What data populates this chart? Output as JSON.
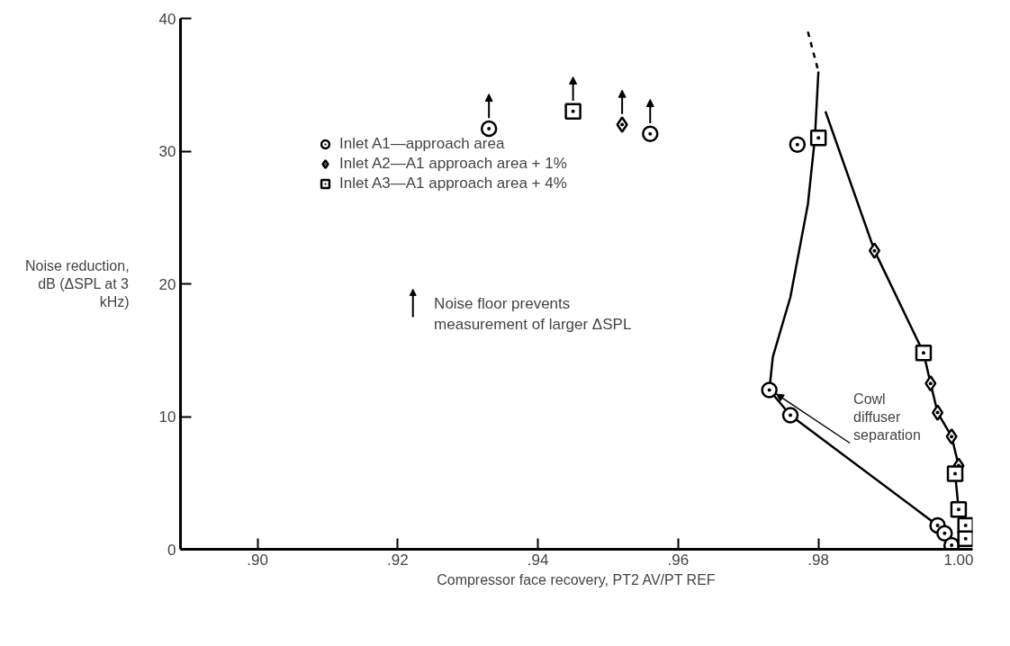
{
  "chart_data": {
    "type": "scatter",
    "xlabel": "Compressor face recovery, PT2 AV/PT REF",
    "ylabel": "Noise reduction, dB (ΔSPL at 3 kHz)",
    "xlim": [
      0.889,
      1.002
    ],
    "ylim": [
      0,
      40
    ],
    "xticks": [
      {
        "value": 0.9,
        "label": ".90"
      },
      {
        "value": 0.92,
        "label": ".92"
      },
      {
        "value": 0.94,
        "label": ".94"
      },
      {
        "value": 0.96,
        "label": ".96"
      },
      {
        "value": 0.98,
        "label": ".98"
      },
      {
        "value": 1.0,
        "label": "1.00"
      }
    ],
    "yticks": [
      0,
      10,
      20,
      30,
      40
    ],
    "grid": false,
    "legend": "top left",
    "series": [
      {
        "name": "Inlet A1—approach area",
        "color": "#000000",
        "marker": "circle",
        "x": [
          0.933,
          0.956,
          0.977,
          0.973,
          0.976,
          0.997,
          0.998,
          0.999
        ],
        "values": [
          31.7,
          31.3,
          30.5,
          12,
          10.1,
          1.8,
          1.2,
          0.3
        ]
      },
      {
        "name": "Inlet A2—A1 approach area + 1%",
        "color": "#000000",
        "marker": "diamond",
        "x": [
          0.952,
          0.988,
          0.996,
          0.997,
          0.999,
          1.0
        ],
        "values": [
          32,
          22.5,
          12.5,
          10.3,
          8.5,
          6.3
        ]
      },
      {
        "name": "Inlet A3—A1 approach area + 4%",
        "color": "#000000",
        "marker": "square",
        "x": [
          0.945,
          0.98,
          0.995,
          0.9995,
          1.0,
          1.001,
          1.001
        ],
        "values": [
          33,
          31,
          14.8,
          5.7,
          3,
          1.8,
          0.8
        ]
      },
      {
        "type": "line",
        "color": "#000000",
        "line_style": "solid",
        "x": [
          0.98,
          0.9795,
          0.9785,
          0.976,
          0.9735,
          0.973,
          0.976,
          0.997,
          0.998,
          0.999
        ],
        "values": [
          36,
          31,
          26,
          19,
          14.5,
          12,
          10.1,
          1.8,
          1.2,
          0.3
        ]
      },
      {
        "type": "line",
        "color": "#000000",
        "line_style": "dashed",
        "x": [
          0.9785,
          0.98
        ],
        "values": [
          39,
          36
        ]
      },
      {
        "type": "line",
        "color": "#000000",
        "line_style": "solid",
        "x": [
          0.981,
          0.988,
          0.995,
          0.996,
          0.997,
          0.999,
          1.0,
          0.9995,
          1.0,
          1.001,
          1.001
        ],
        "values": [
          33,
          22.5,
          14.8,
          12.5,
          10.3,
          8.5,
          6.3,
          5.7,
          3,
          1.8,
          0.8
        ]
      }
    ],
    "annotations": [
      {
        "text": "Noise floor prevents measurement of larger ΔSPL"
      },
      {
        "text": "Cowl diffuser separation",
        "x": 0.973,
        "y": 12
      }
    ]
  }
}
